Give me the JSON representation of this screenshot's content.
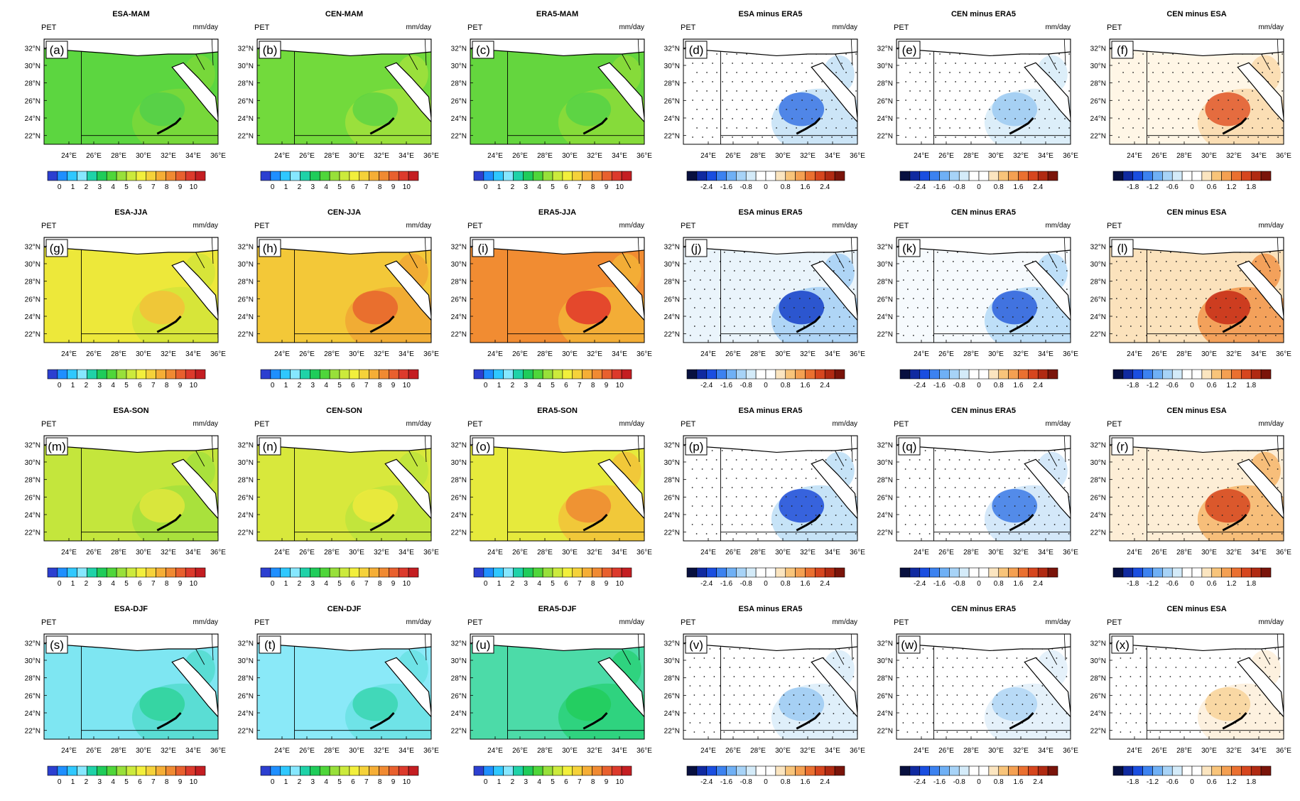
{
  "figure": {
    "lat_ticks": [
      "32°N",
      "30°N",
      "28°N",
      "26°N",
      "24°N",
      "22°N"
    ],
    "lon_ticks": [
      "24°E",
      "26°E",
      "28°E",
      "30°E",
      "32°E",
      "34°E",
      "36°E"
    ],
    "abs_cbar_labels": [
      "0",
      "1",
      "2",
      "3",
      "4",
      "5",
      "6",
      "7",
      "8",
      "9",
      "10"
    ],
    "diff_cbar_labels": [
      "-2.4",
      "-1.6",
      "-0.8",
      "0",
      "0.8",
      "1.6",
      "2.4"
    ],
    "diff2_cbar_labels": [
      "-1.8",
      "-1.2",
      "-0.6",
      "0",
      "0.6",
      "1.2",
      "1.8"
    ],
    "abs_colors": [
      "#2c3fd0",
      "#1f8fff",
      "#2fc8ff",
      "#86e7ff",
      "#1fd2a8",
      "#1fcc5a",
      "#4fd63a",
      "#98e03a",
      "#ccea3c",
      "#f2ef3c",
      "#f5d23a",
      "#f5ae36",
      "#f08a32",
      "#e8602e",
      "#dc3a2c",
      "#c41e22"
    ],
    "diff_colors": [
      "#08103f",
      "#102aa0",
      "#1a4ee0",
      "#3c82f0",
      "#6fb0f5",
      "#a7d3f7",
      "#d4ebf9",
      "#ffffff",
      "#ffffff",
      "#fbe5c0",
      "#f8c47a",
      "#f4a052",
      "#ea7030",
      "#d6461e",
      "#b02a12",
      "#7a140a"
    ],
    "panels": [
      {
        "title": "ESA-MAM",
        "label": "(a)",
        "model": "PET",
        "units": "mm/day",
        "scale": "abs",
        "field": "#5cd640",
        "accent": "#7ad83a",
        "blob": "#52d04a"
      },
      {
        "title": "CEN-MAM",
        "label": "(b)",
        "model": "PET",
        "units": "mm/day",
        "scale": "abs",
        "field": "#72da3c",
        "accent": "#9ee03c",
        "blob": "#5fd442"
      },
      {
        "title": "ERA5-MAM",
        "label": "(c)",
        "model": "PET",
        "units": "mm/day",
        "scale": "abs",
        "field": "#64d63e",
        "accent": "#8adc3a",
        "blob": "#56d246"
      },
      {
        "title": "ESA minus ERA5",
        "label": "(d)",
        "model": "PET",
        "units": "mm/day",
        "scale": "diff",
        "field": "#ffffff",
        "accent": "#c6e2f6",
        "blob": "#3a76e4"
      },
      {
        "title": "CEN minus ERA5",
        "label": "(e)",
        "model": "PET",
        "units": "mm/day",
        "scale": "diff",
        "field": "#ffffff",
        "accent": "#d8ecf8",
        "blob": "#9ccaf2"
      },
      {
        "title": "CEN minus ESA",
        "label": "(f)",
        "model": "PET",
        "units": "mm/day",
        "scale": "diff2",
        "field": "#fff6e6",
        "accent": "#fbdcae",
        "blob": "#e0582a"
      },
      {
        "title": "ESA-JJA",
        "label": "(g)",
        "model": "PET",
        "units": "mm/day",
        "scale": "abs",
        "field": "#ede83a",
        "accent": "#d4e43a",
        "blob": "#f3c238"
      },
      {
        "title": "CEN-JJA",
        "label": "(h)",
        "model": "PET",
        "units": "mm/day",
        "scale": "abs",
        "field": "#f3c838",
        "accent": "#f1a834",
        "blob": "#e8642e"
      },
      {
        "title": "ERA5-JJA",
        "label": "(i)",
        "model": "PET",
        "units": "mm/day",
        "scale": "abs",
        "field": "#f18c32",
        "accent": "#f3b036",
        "blob": "#e0362a"
      },
      {
        "title": "ESA minus ERA5",
        "label": "(j)",
        "model": "PET",
        "units": "mm/day",
        "scale": "diff",
        "field": "#eaf4fb",
        "accent": "#a8d2f5",
        "blob": "#1540c8"
      },
      {
        "title": "CEN minus ERA5",
        "label": "(k)",
        "model": "PET",
        "units": "mm/day",
        "scale": "diff",
        "field": "#f6fafd",
        "accent": "#b8dcf7",
        "blob": "#2c60dc"
      },
      {
        "title": "CEN minus ESA",
        "label": "(l)",
        "model": "PET",
        "units": "mm/day",
        "scale": "diff2",
        "field": "#fbe2bc",
        "accent": "#f29a50",
        "blob": "#c62c16"
      },
      {
        "title": "ESA-SON",
        "label": "(m)",
        "model": "PET",
        "units": "mm/day",
        "scale": "abs",
        "field": "#c4e63c",
        "accent": "#a6e03c",
        "blob": "#e2e63c"
      },
      {
        "title": "CEN-SON",
        "label": "(n)",
        "model": "PET",
        "units": "mm/day",
        "scale": "abs",
        "field": "#d8e83c",
        "accent": "#c0e43c",
        "blob": "#eeea3c"
      },
      {
        "title": "ERA5-SON",
        "label": "(o)",
        "model": "PET",
        "units": "mm/day",
        "scale": "abs",
        "field": "#e6ea3c",
        "accent": "#f2c438",
        "blob": "#ee8a32"
      },
      {
        "title": "ESA minus ERA5",
        "label": "(p)",
        "model": "PET",
        "units": "mm/day",
        "scale": "diff",
        "field": "#ffffff",
        "accent": "#c0e0f6",
        "blob": "#1d4cd8"
      },
      {
        "title": "CEN minus ERA5",
        "label": "(q)",
        "model": "PET",
        "units": "mm/day",
        "scale": "diff",
        "field": "#ffffff",
        "accent": "#cfe6f8",
        "blob": "#3c7ae6"
      },
      {
        "title": "CEN minus ESA",
        "label": "(r)",
        "model": "PET",
        "units": "mm/day",
        "scale": "diff2",
        "field": "#fdeed6",
        "accent": "#f6b870",
        "blob": "#d6461e"
      },
      {
        "title": "ESA-DJF",
        "label": "(s)",
        "model": "PET",
        "units": "mm/day",
        "scale": "abs",
        "field": "#7ee6f2",
        "accent": "#56dcd0",
        "blob": "#30d49a"
      },
      {
        "title": "CEN-DJF",
        "label": "(t)",
        "model": "PET",
        "units": "mm/day",
        "scale": "abs",
        "field": "#8ae9f8",
        "accent": "#6ce2e4",
        "blob": "#3ad6b0"
      },
      {
        "title": "ERA5-DJF",
        "label": "(u)",
        "model": "PET",
        "units": "mm/day",
        "scale": "abs",
        "field": "#4cdba8",
        "accent": "#2cd27a",
        "blob": "#22cc5c"
      },
      {
        "title": "ESA minus ERA5",
        "label": "(v)",
        "model": "PET",
        "units": "mm/day",
        "scale": "diff",
        "field": "#ffffff",
        "accent": "#dcedf9",
        "blob": "#9ccaf2"
      },
      {
        "title": "CEN minus ERA5",
        "label": "(w)",
        "model": "PET",
        "units": "mm/day",
        "scale": "diff",
        "field": "#ffffff",
        "accent": "#e2f0fa",
        "blob": "#b0d6f5"
      },
      {
        "title": "CEN minus ESA",
        "label": "(x)",
        "model": "PET",
        "units": "mm/day",
        "scale": "diff2",
        "field": "#ffffff",
        "accent": "#fdf0dc",
        "blob": "#f8d49a"
      }
    ]
  }
}
